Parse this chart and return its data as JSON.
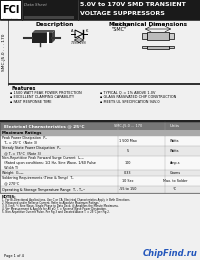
{
  "title_line1": "5.0V to 170V SMD TRANSIENT",
  "title_line2": "VOLTAGE SUPPRESSORS",
  "logo_text": "FCI",
  "datasheet_text": "Data Sheet",
  "series_text": "SMC-J5.0 . . . 170",
  "desc_title": "Description",
  "mech_title": "Mechanical Dimensions",
  "package_label": "Package",
  "package_name": "\"SMC\"",
  "features_title": "Features",
  "features": [
    "1500 WATT PEAK POWER PROTECTION",
    "EXCELLENT CLAMPING CAPABILITY",
    "FAST RESPONSE TIME"
  ],
  "features2": [
    "TYPICAL Qₗ = 1% ABOVE 1.0V",
    "GLASS PASSIVATED CHIP CONSTRUCTION",
    "MEETS UL SPECIFICATION 94V-0"
  ],
  "table_header_left": "Electrical Characteristics @ 25°C",
  "table_header_mid": "SMC-J5.0 ... 170",
  "table_header_right": "Units",
  "table_rows": [
    {
      "param": "Maximum Ratings",
      "value": "",
      "unit": "",
      "subheader": true
    },
    {
      "param": "Peak Power Dissipation  Pₚ",
      "param2": "  Tₐ = 25°C  (Note 3)",
      "value": "1 500 Max",
      "unit": "Watts"
    },
    {
      "param": "Steady State Power Dissipation  Pₚ",
      "param2": "  @ Tⱼ = 75°C  (Note 3)",
      "value": "5",
      "unit": "Watts"
    },
    {
      "param": "Non-Repetitive Peak Forward Surge Current  Iₚₛₘ",
      "param2": "  (Rated upon conditions: 1/2 Hz, Sine Wave, 1/60 Pulse",
      "param3": "  Width T)",
      "value": "100",
      "unit": "Amp-s"
    },
    {
      "param": "Weight  Gₘₐₓ",
      "param2": "",
      "value": "0.33",
      "unit": "Grams"
    },
    {
      "param": "Soldering Requirements (Time & Temp)  Tₛ",
      "param2": "  @ 270°C",
      "value": "10 Sec",
      "unit": "Max. to Solder"
    },
    {
      "param": "Operating & Storage Temperature Range  Tⱼ , Tₛₜᴳ",
      "param2": "",
      "value": "-55 to 150",
      "unit": "°C"
    }
  ],
  "notes_header": "NOTES:",
  "notes": [
    "1. For Bi-Directional Applications, Use C or CA. Electrical Characteristics Apply in Both Directions.",
    "2. Measured under Reverse Current. Refer to Absolute Maximum Ratings.",
    "3. 8.3 mS, ½ Sine Wave, Single Phase to Data Deck, @ Amplifies the Minute Maximums.",
    "4. Vʙᴼ Measurement & Applies for All aO. Tⱼ = Reverse Wave Power Dissipation.",
    "5. Non-Repetitive Current Pulse. Per Fig 3 and Derated Above Tⱼ = 25°C per Fig 2."
  ],
  "page_text": "Page 1 of 4",
  "chipfind_text": "ChipFind.ru",
  "chipfind_color": "#2255bb",
  "bg_color": "#f0f0f0",
  "header_bg": "#1a1a1a",
  "divider_color": "#555555",
  "table_subhdr_bg": "#aaaaaa",
  "table_hdr_bg": "#777777",
  "row_odd": "#e8e8e8",
  "row_even": "#f8f8f8"
}
